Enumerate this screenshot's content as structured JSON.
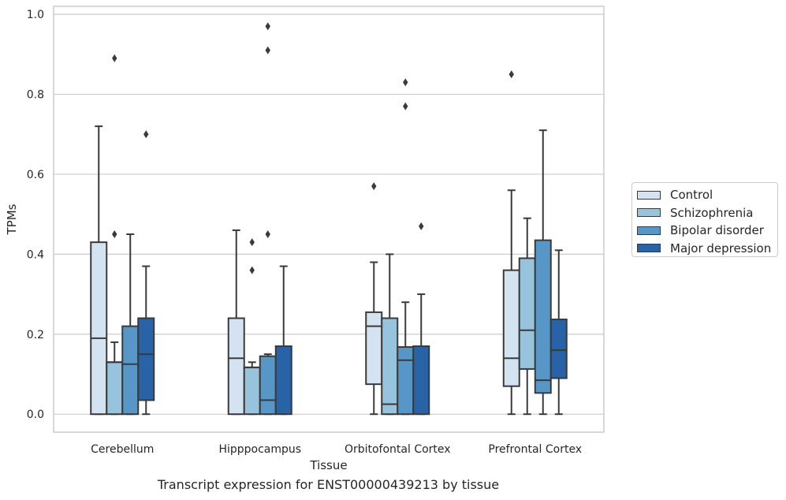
{
  "caption": "Transcript expression for ENST00000439213 by tissue",
  "colors": {
    "Control": "#d4e3f1",
    "Schizophrenia": "#98c3dd",
    "Bipolar disorder": "#5697c8",
    "Major depression": "#2763a6",
    "edge": "#3a3a3a",
    "grid": "#cccccc"
  },
  "chart_data": {
    "type": "box",
    "xlabel": "Tissue",
    "ylabel": "TPMs",
    "ylim": [
      -0.045,
      1.02
    ],
    "yticks": [
      "0.0",
      "0.2",
      "0.4",
      "0.6",
      "0.8",
      "1.0"
    ],
    "categories": [
      "Cerebellum",
      "Hipppocampus",
      "Orbitofontal Cortex",
      "Prefrontal Cortex"
    ],
    "grid": true,
    "legend_position": "right",
    "series": [
      {
        "name": "Control",
        "boxes": [
          {
            "min": 0.0,
            "q1": 0.0,
            "median": 0.19,
            "q3": 0.43,
            "max": 0.72,
            "outliers": []
          },
          {
            "min": 0.0,
            "q1": 0.0,
            "median": 0.14,
            "q3": 0.24,
            "max": 0.46,
            "outliers": []
          },
          {
            "min": 0.0,
            "q1": 0.075,
            "median": 0.22,
            "q3": 0.255,
            "max": 0.38,
            "outliers": [
              0.57
            ]
          },
          {
            "min": 0.0,
            "q1": 0.07,
            "median": 0.14,
            "q3": 0.36,
            "max": 0.56,
            "outliers": [
              0.85
            ]
          }
        ]
      },
      {
        "name": "Schizophrenia",
        "boxes": [
          {
            "min": 0.0,
            "q1": 0.0,
            "median": 0.13,
            "q3": 0.13,
            "max": 0.18,
            "outliers": [
              0.45,
              0.89
            ]
          },
          {
            "min": 0.0,
            "q1": 0.0,
            "median": 0.117,
            "q3": 0.117,
            "max": 0.13,
            "outliers": [
              0.36,
              0.43
            ]
          },
          {
            "min": 0.0,
            "q1": 0.0,
            "median": 0.025,
            "q3": 0.24,
            "max": 0.4,
            "outliers": []
          },
          {
            "min": 0.0,
            "q1": 0.113,
            "median": 0.21,
            "q3": 0.39,
            "max": 0.49,
            "outliers": []
          }
        ]
      },
      {
        "name": "Bipolar disorder",
        "boxes": [
          {
            "min": 0.0,
            "q1": 0.0,
            "median": 0.125,
            "q3": 0.22,
            "max": 0.45,
            "outliers": []
          },
          {
            "min": 0.0,
            "q1": 0.0,
            "median": 0.035,
            "q3": 0.145,
            "max": 0.15,
            "outliers": [
              0.45,
              0.91,
              0.97
            ]
          },
          {
            "min": 0.0,
            "q1": 0.0,
            "median": 0.135,
            "q3": 0.168,
            "max": 0.28,
            "outliers": [
              0.77,
              0.83
            ]
          },
          {
            "min": 0.0,
            "q1": 0.053,
            "median": 0.085,
            "q3": 0.435,
            "max": 0.71,
            "outliers": []
          }
        ]
      },
      {
        "name": "Major depression",
        "boxes": [
          {
            "min": 0.0,
            "q1": 0.035,
            "median": 0.15,
            "q3": 0.24,
            "max": 0.37,
            "outliers": [
              0.7
            ]
          },
          {
            "min": 0.0,
            "q1": 0.0,
            "median": 0.17,
            "q3": 0.17,
            "max": 0.37,
            "outliers": []
          },
          {
            "min": 0.0,
            "q1": 0.0,
            "median": 0.17,
            "q3": 0.17,
            "max": 0.3,
            "outliers": [
              0.47
            ]
          },
          {
            "min": 0.0,
            "q1": 0.09,
            "median": 0.16,
            "q3": 0.237,
            "max": 0.41,
            "outliers": []
          }
        ]
      }
    ]
  }
}
